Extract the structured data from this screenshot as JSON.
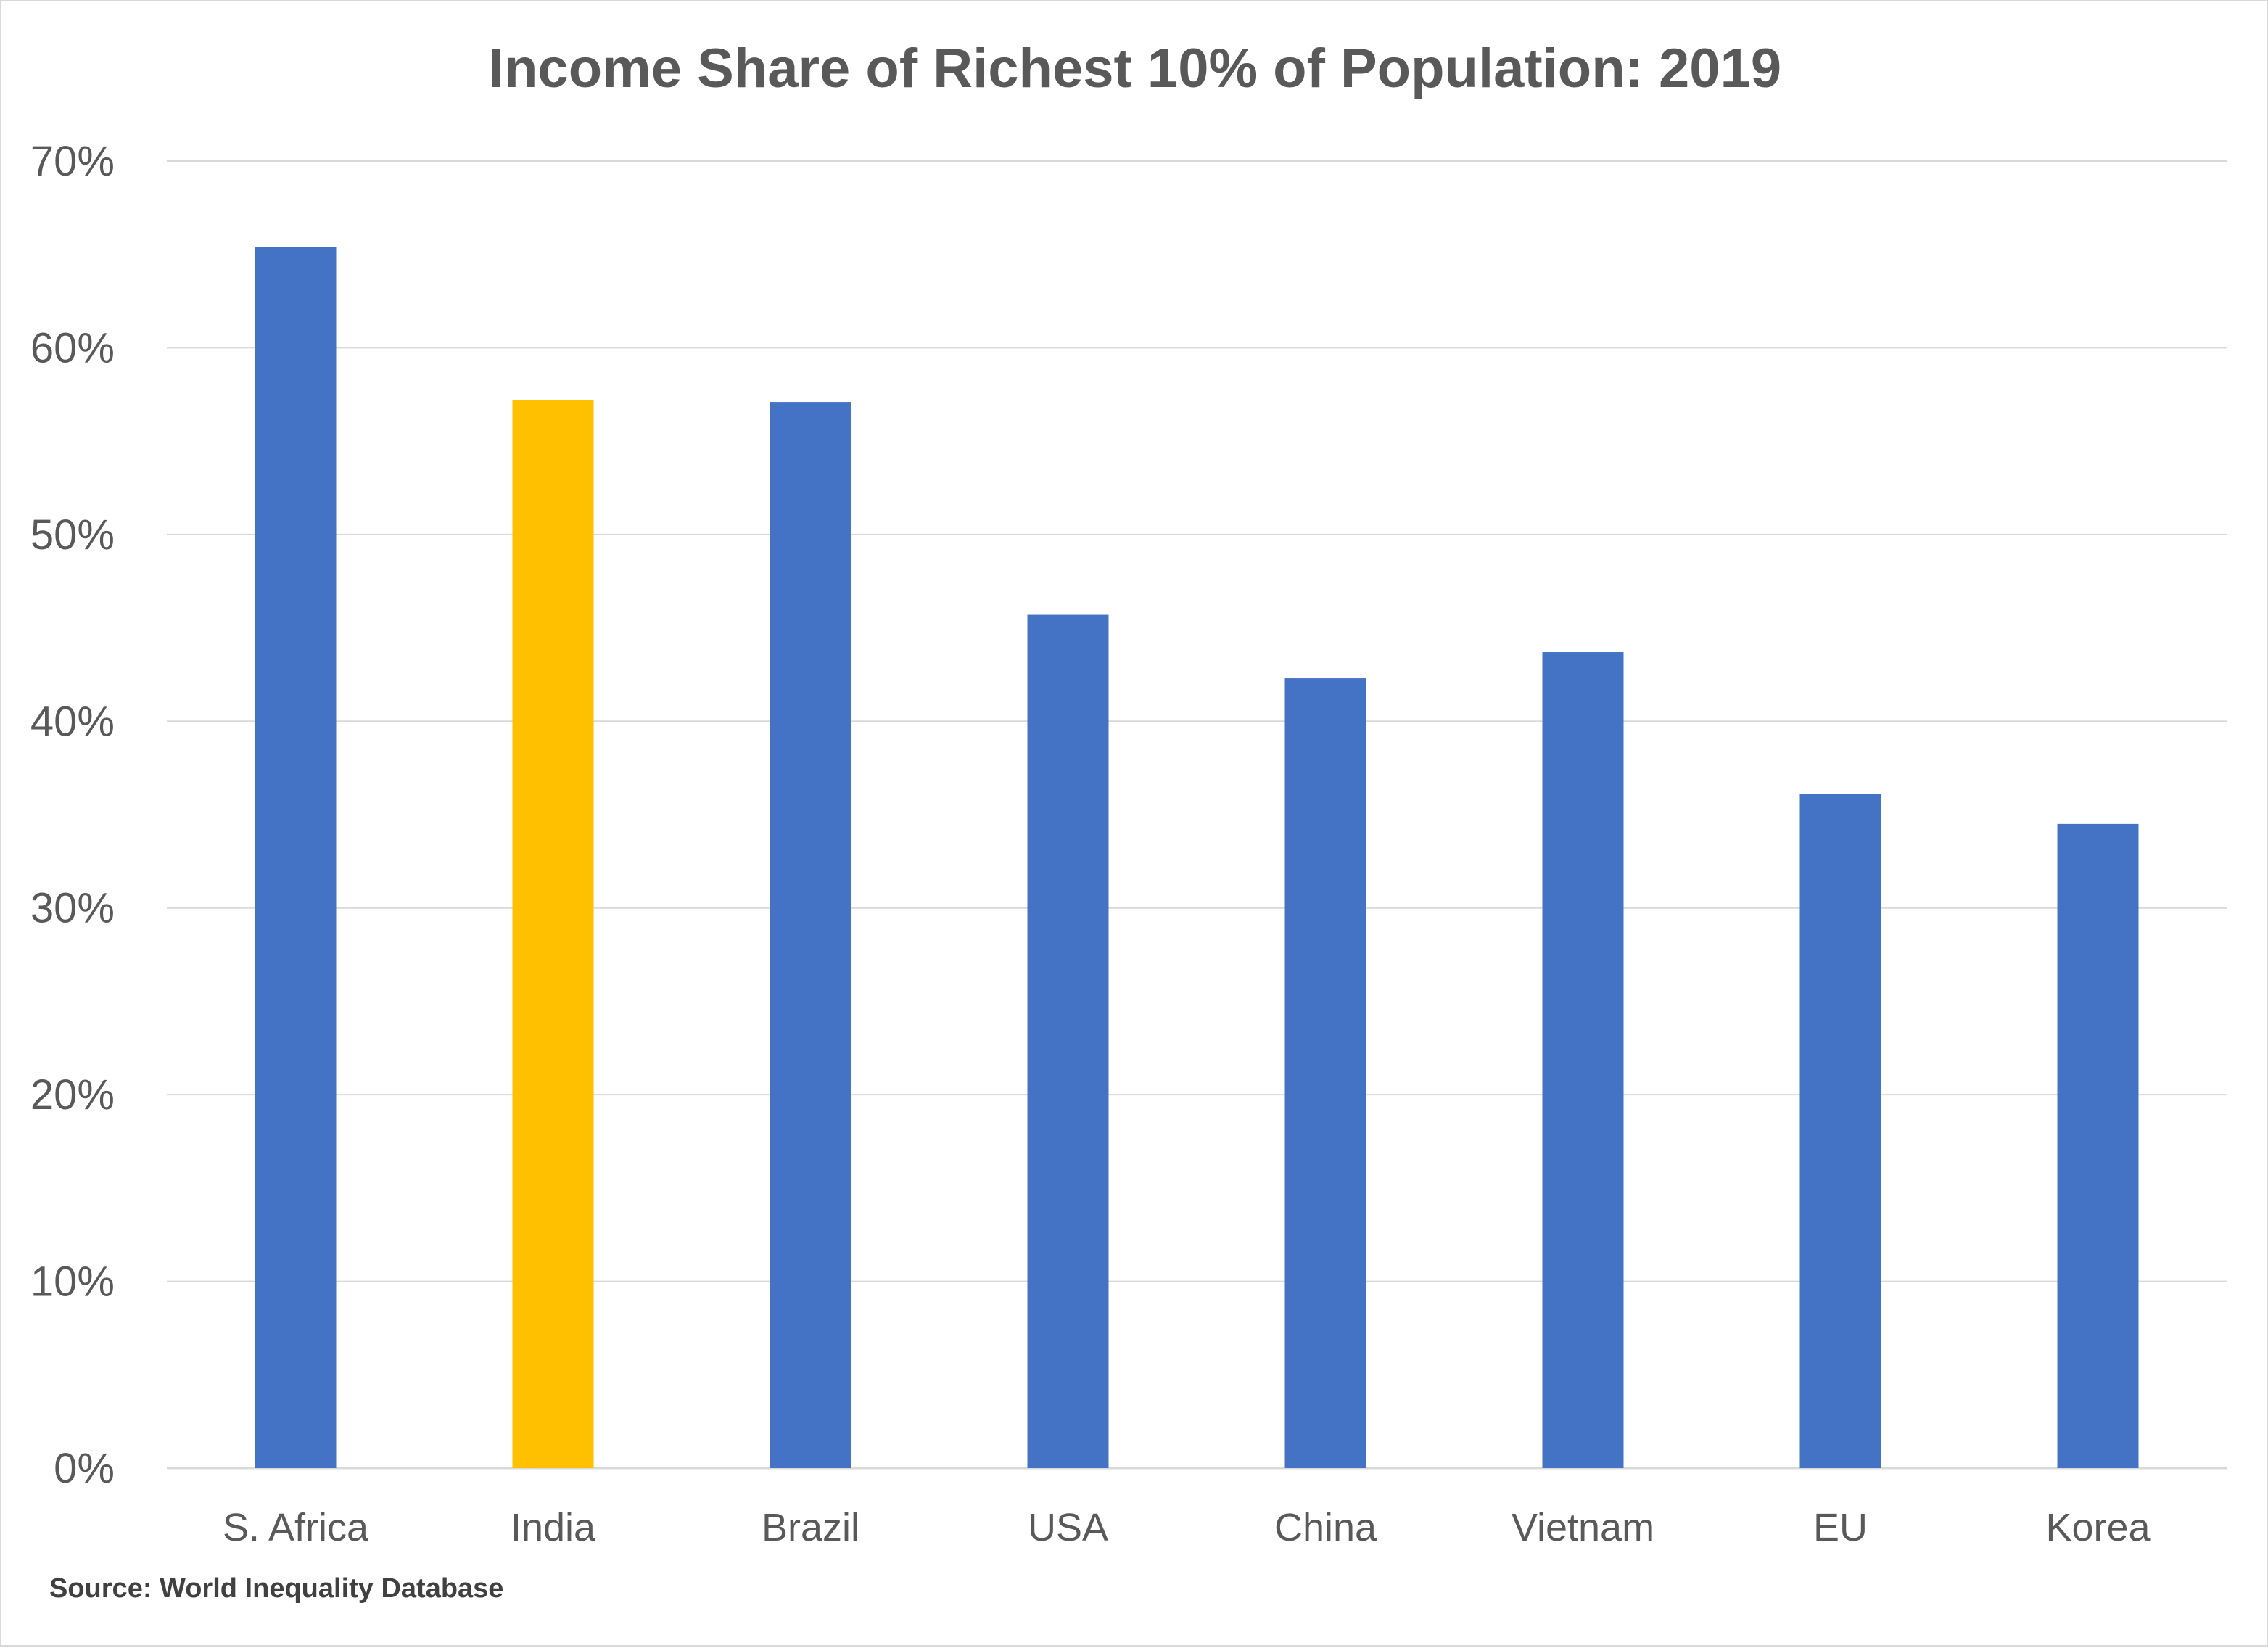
{
  "chart_data": {
    "type": "bar",
    "title": "Income Share of Richest 10% of Population: 2019",
    "categories": [
      "S. Africa",
      "India",
      "Brazil",
      "USA",
      "China",
      "Vietnam",
      "EU",
      "Korea"
    ],
    "values": [
      65.4,
      57.2,
      57.1,
      45.7,
      42.3,
      43.7,
      36.1,
      34.5
    ],
    "highlight_category": "India",
    "y_ticks": [
      "0%",
      "10%",
      "20%",
      "30%",
      "40%",
      "50%",
      "60%",
      "70%"
    ],
    "ylim": [
      0,
      70
    ],
    "y_unit": "%",
    "grid": true,
    "legend": "none",
    "colors": {
      "bar": "#4472c4",
      "highlight": "#ffc000",
      "gridline": "#d9d9d9",
      "text": "#595959"
    }
  },
  "source_note": "Source: World Inequality Database"
}
